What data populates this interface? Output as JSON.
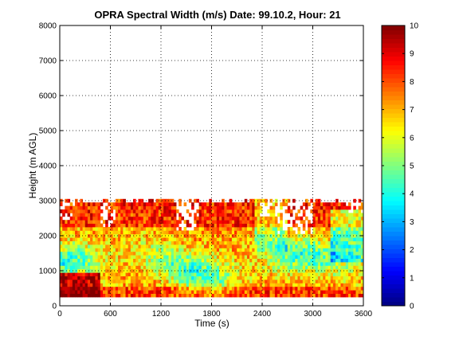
{
  "chart_data": {
    "type": "heatmap",
    "title": "OPRA Spectral Width (m/s)  Date: 99.10.2, Hour: 21",
    "xlabel": "Time (s)",
    "ylabel": "Height (m AGL)",
    "xlim": [
      0,
      3600
    ],
    "ylim": [
      0,
      8000
    ],
    "x_ticks": [
      0,
      600,
      1200,
      1800,
      2400,
      3000,
      3600
    ],
    "y_ticks": [
      0,
      1000,
      2000,
      3000,
      4000,
      5000,
      6000,
      7000,
      8000
    ],
    "grid": true,
    "colormap": "jet",
    "colorbar": {
      "range": [
        0,
        10
      ],
      "ticks": [
        0,
        1,
        2,
        3,
        4,
        5,
        6,
        7,
        8,
        9,
        10
      ]
    },
    "data_extent": {
      "time": [
        0,
        3600
      ],
      "height": [
        250,
        3000
      ]
    },
    "time_step_s": 30,
    "height_step_m": 100,
    "description_of_field": "Values concentrated roughly 5-10 m/s below 3000 m; highest (~9-10) near 250-900 m early in the hour and scattered above 2000 m; mid values (~4-6) in bands around 500-2000 m."
  }
}
